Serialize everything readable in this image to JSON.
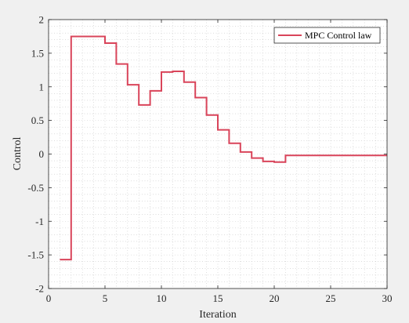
{
  "chart_data": {
    "type": "line",
    "step": true,
    "title": "",
    "xlabel": "Iteration",
    "ylabel": "Control",
    "xlim": [
      0,
      30
    ],
    "ylim": [
      -2,
      2
    ],
    "xticks": [
      0,
      5,
      10,
      15,
      20,
      25,
      30
    ],
    "yticks": [
      -2,
      -1.5,
      -1,
      -0.5,
      0,
      0.5,
      1,
      1.5,
      2
    ],
    "xtick_labels": [
      "0",
      "5",
      "10",
      "15",
      "20",
      "25",
      "30"
    ],
    "ytick_labels": [
      "-2",
      "-1.5",
      "-1",
      "-0.5",
      "0",
      "0.5",
      "1",
      "1.5",
      "2"
    ],
    "grid": "minor-dotted",
    "legend_position": "top-right",
    "series": [
      {
        "name": "MPC Control law",
        "color": "#d9445a",
        "x": [
          1,
          2,
          3,
          4,
          5,
          6,
          7,
          8,
          9,
          10,
          11,
          12,
          13,
          14,
          15,
          16,
          17,
          18,
          19,
          20,
          21,
          22,
          23,
          24,
          25,
          26,
          27,
          28,
          29,
          30
        ],
        "y": [
          -1.57,
          1.75,
          1.75,
          1.75,
          1.65,
          1.34,
          1.03,
          0.73,
          0.94,
          1.22,
          1.23,
          1.07,
          0.84,
          0.58,
          0.36,
          0.16,
          0.03,
          -0.06,
          -0.11,
          -0.12,
          -0.02,
          -0.02,
          -0.02,
          -0.02,
          -0.02,
          -0.02,
          -0.02,
          -0.02,
          -0.02,
          -0.02
        ]
      }
    ]
  }
}
